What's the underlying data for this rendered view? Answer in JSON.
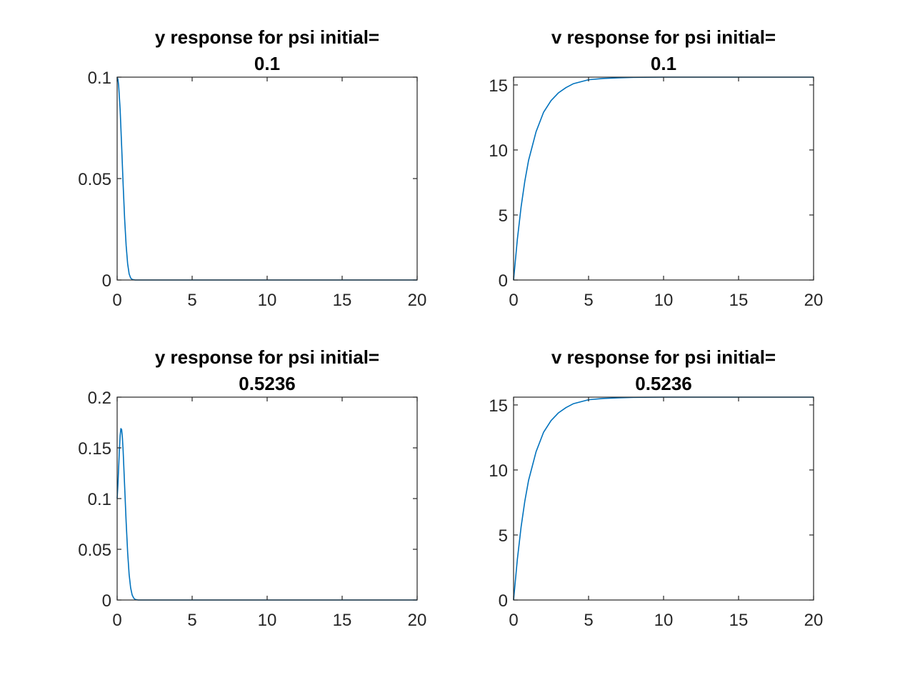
{
  "figure": {
    "background": "#ffffff",
    "line_color": "#0072BD"
  },
  "chart_data": [
    {
      "type": "line",
      "title": [
        "y response for psi initial=",
        "0.1"
      ],
      "xlabel": "",
      "ylabel": "",
      "xlim": [
        0,
        20
      ],
      "ylim": [
        0,
        0.1
      ],
      "xticks": [
        0,
        5,
        10,
        15,
        20
      ],
      "xtick_labels": [
        "0",
        "5",
        "10",
        "15",
        "20"
      ],
      "yticks": [
        0,
        0.05,
        0.1
      ],
      "ytick_labels": [
        "0",
        "0.05",
        "0.1"
      ],
      "grid": false,
      "series": [
        {
          "x": [
            0,
            0.05,
            0.1,
            0.2,
            0.3,
            0.4,
            0.5,
            0.6,
            0.7,
            0.8,
            0.9,
            1.0,
            1.2,
            1.5,
            2,
            5,
            10,
            15,
            20
          ],
          "y": [
            0.1,
            0.099,
            0.096,
            0.084,
            0.066,
            0.047,
            0.03,
            0.017,
            0.008,
            0.003,
            0.001,
            0.0003,
            0,
            0,
            0,
            0,
            0,
            0,
            0
          ]
        }
      ]
    },
    {
      "type": "line",
      "title": [
        "v response for psi initial=",
        "0.1"
      ],
      "xlabel": "",
      "ylabel": "",
      "xlim": [
        0,
        20
      ],
      "ylim": [
        0,
        15.6
      ],
      "xticks": [
        0,
        5,
        10,
        15,
        20
      ],
      "xtick_labels": [
        "0",
        "5",
        "10",
        "15",
        "20"
      ],
      "yticks": [
        0,
        5,
        10,
        15
      ],
      "ytick_labels": [
        "0",
        "5",
        "10",
        "15"
      ],
      "grid": false,
      "series": [
        {
          "x": [
            0,
            0.25,
            0.5,
            0.75,
            1,
            1.5,
            2,
            2.5,
            3,
            3.5,
            4,
            5,
            6,
            7,
            8,
            10,
            12,
            15,
            20
          ],
          "y": [
            0,
            3.1,
            5.6,
            7.6,
            9.2,
            11.4,
            12.9,
            13.8,
            14.4,
            14.8,
            15.1,
            15.4,
            15.5,
            15.55,
            15.58,
            15.6,
            15.6,
            15.6,
            15.6
          ]
        }
      ]
    },
    {
      "type": "line",
      "title": [
        "y response for psi initial=",
        "0.5236"
      ],
      "xlabel": "",
      "ylabel": "",
      "xlim": [
        0,
        20
      ],
      "ylim": [
        0,
        0.2
      ],
      "xticks": [
        0,
        5,
        10,
        15,
        20
      ],
      "xtick_labels": [
        "0",
        "5",
        "10",
        "15",
        "20"
      ],
      "yticks": [
        0,
        0.05,
        0.1,
        0.15,
        0.2
      ],
      "ytick_labels": [
        "0",
        "0.05",
        "0.1",
        "0.15",
        "0.2"
      ],
      "grid": false,
      "series": [
        {
          "x": [
            0,
            0.05,
            0.1,
            0.15,
            0.2,
            0.25,
            0.3,
            0.35,
            0.4,
            0.5,
            0.6,
            0.7,
            0.8,
            0.9,
            1.0,
            1.1,
            1.2,
            1.4,
            1.6,
            2,
            5,
            10,
            15,
            20
          ],
          "y": [
            0.1,
            0.113,
            0.13,
            0.148,
            0.162,
            0.169,
            0.168,
            0.16,
            0.147,
            0.112,
            0.077,
            0.047,
            0.025,
            0.012,
            0.005,
            0.002,
            0.0006,
            0,
            0,
            0,
            0,
            0,
            0,
            0
          ]
        }
      ]
    },
    {
      "type": "line",
      "title": [
        "v response for psi initial=",
        "0.5236"
      ],
      "xlabel": "",
      "ylabel": "",
      "xlim": [
        0,
        20
      ],
      "ylim": [
        0,
        15.6
      ],
      "xticks": [
        0,
        5,
        10,
        15,
        20
      ],
      "xtick_labels": [
        "0",
        "5",
        "10",
        "15",
        "20"
      ],
      "yticks": [
        0,
        5,
        10,
        15
      ],
      "ytick_labels": [
        "0",
        "5",
        "10",
        "15"
      ],
      "grid": false,
      "series": [
        {
          "x": [
            0,
            0.25,
            0.5,
            0.75,
            1,
            1.5,
            2,
            2.5,
            3,
            3.5,
            4,
            5,
            6,
            7,
            8,
            10,
            12,
            15,
            20
          ],
          "y": [
            0,
            3.1,
            5.6,
            7.6,
            9.2,
            11.4,
            12.9,
            13.8,
            14.4,
            14.8,
            15.1,
            15.4,
            15.5,
            15.55,
            15.58,
            15.6,
            15.6,
            15.6,
            15.6
          ]
        }
      ]
    }
  ]
}
